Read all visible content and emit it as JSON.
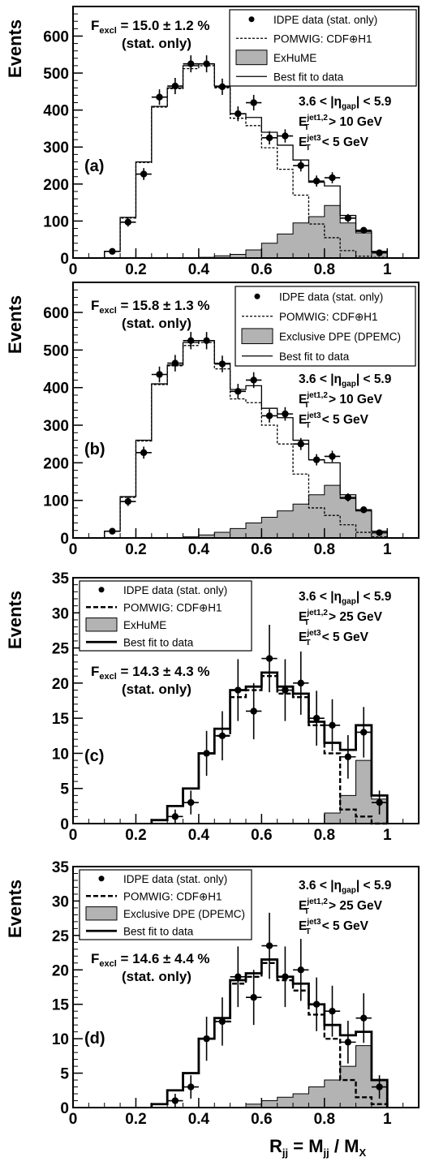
{
  "panels": [
    {
      "id": "a",
      "ylabel": "Events",
      "xlim": [
        0,
        1.1
      ],
      "ylim": [
        0,
        680
      ],
      "yticks": [
        0,
        100,
        200,
        300,
        400,
        500,
        600
      ],
      "xticks": [
        0,
        0.2,
        0.4,
        0.6,
        0.8,
        1
      ],
      "panel_label": "(a)",
      "fexcl_value": "15.0",
      "fexcl_unc": "1.2",
      "fexcl_stat": "(stat. only)",
      "cuts": {
        "eta_lo": "3.6",
        "eta_hi": "5.9",
        "et12": "> 10 GeV",
        "et3": "< 5 GeV"
      },
      "legend": {
        "data": "IDPE data (stat. only)",
        "pomwig": "POMWIG: CDF⊕H1",
        "excl": "ExHuME",
        "fit": "Best fit to data"
      },
      "chart_data": {
        "type": "histogram",
        "bin_edges": [
          0.1,
          0.15,
          0.2,
          0.25,
          0.3,
          0.35,
          0.4,
          0.45,
          0.5,
          0.55,
          0.6,
          0.65,
          0.7,
          0.75,
          0.8,
          0.85,
          0.9,
          0.95,
          1.0
        ],
        "data_x": [
          0.125,
          0.175,
          0.225,
          0.275,
          0.325,
          0.375,
          0.425,
          0.475,
          0.525,
          0.575,
          0.625,
          0.675,
          0.725,
          0.775,
          0.825,
          0.875,
          0.925,
          0.975
        ],
        "data_y": [
          18,
          97,
          227,
          435,
          465,
          525,
          525,
          463,
          390,
          420,
          325,
          330,
          250,
          208,
          217,
          108,
          75,
          14
        ],
        "data_err": [
          5,
          12,
          16,
          21,
          22,
          23,
          23,
          22,
          20,
          21,
          18,
          18,
          16,
          15,
          15,
          11,
          9,
          4
        ],
        "pomwig": [
          18,
          108,
          258,
          408,
          458,
          512,
          520,
          460,
          378,
          358,
          298,
          240,
          170,
          92,
          55,
          20,
          5,
          2
        ],
        "exclusive": [
          0,
          0,
          0,
          0,
          0,
          0,
          2,
          6,
          10,
          22,
          40,
          65,
          95,
          112,
          142,
          95,
          68,
          15
        ],
        "best_fit": [
          18,
          110,
          260,
          410,
          460,
          520,
          525,
          465,
          390,
          380,
          340,
          305,
          265,
          205,
          195,
          115,
          72,
          18
        ]
      }
    },
    {
      "id": "b",
      "ylabel": "Events",
      "xlim": [
        0,
        1.1
      ],
      "ylim": [
        0,
        680
      ],
      "yticks": [
        0,
        100,
        200,
        300,
        400,
        500,
        600
      ],
      "xticks": [
        0,
        0.2,
        0.4,
        0.6,
        0.8,
        1
      ],
      "panel_label": "(b)",
      "fexcl_value": "15.8",
      "fexcl_unc": "1.3",
      "fexcl_stat": "(stat. only)",
      "cuts": {
        "eta_lo": "3.6",
        "eta_hi": "5.9",
        "et12": "> 10 GeV",
        "et3": "< 5 GeV"
      },
      "legend": {
        "data": "IDPE data (stat. only)",
        "pomwig": "POMWIG: CDF⊕H1",
        "excl": "Exclusive DPE (DPEMC)",
        "fit": "Best fit to data"
      },
      "chart_data": {
        "type": "histogram",
        "bin_edges": [
          0.1,
          0.15,
          0.2,
          0.25,
          0.3,
          0.35,
          0.4,
          0.45,
          0.5,
          0.55,
          0.6,
          0.65,
          0.7,
          0.75,
          0.8,
          0.85,
          0.9,
          0.95,
          1.0
        ],
        "data_x": [
          0.125,
          0.175,
          0.225,
          0.275,
          0.325,
          0.375,
          0.425,
          0.475,
          0.525,
          0.575,
          0.625,
          0.675,
          0.725,
          0.775,
          0.825,
          0.875,
          0.925,
          0.975
        ],
        "data_y": [
          18,
          97,
          227,
          435,
          465,
          525,
          525,
          463,
          390,
          420,
          325,
          330,
          250,
          208,
          217,
          108,
          75,
          14
        ],
        "data_err": [
          5,
          12,
          16,
          21,
          22,
          23,
          23,
          22,
          20,
          21,
          18,
          18,
          16,
          15,
          15,
          11,
          9,
          4
        ],
        "pomwig": [
          18,
          108,
          258,
          408,
          458,
          512,
          520,
          450,
          370,
          360,
          300,
          250,
          170,
          80,
          60,
          35,
          15,
          3
        ],
        "exclusive": [
          0,
          0,
          0,
          0,
          0,
          3,
          8,
          15,
          25,
          40,
          55,
          72,
          90,
          115,
          140,
          105,
          75,
          18
        ],
        "best_fit": [
          18,
          110,
          260,
          410,
          460,
          520,
          525,
          465,
          395,
          405,
          345,
          320,
          260,
          208,
          200,
          115,
          72,
          18
        ]
      }
    },
    {
      "id": "c",
      "ylabel": "Events",
      "xlim": [
        0,
        1.1
      ],
      "ylim": [
        0,
        35
      ],
      "yticks": [
        0,
        5,
        10,
        15,
        20,
        25,
        30,
        35
      ],
      "xticks": [
        0,
        0.2,
        0.4,
        0.6,
        0.8,
        1
      ],
      "panel_label": "(c)",
      "fexcl_value": "14.3",
      "fexcl_unc": "4.3",
      "fexcl_stat": "(stat. only)",
      "cuts": {
        "eta_lo": "3.6",
        "eta_hi": "5.9",
        "et12": "> 25 GeV",
        "et3": "< 5 GeV"
      },
      "legend": {
        "data": "IDPE data (stat. only)",
        "pomwig": "POMWIG: CDF⊕H1",
        "excl": "ExHuME",
        "fit": "Best fit to data"
      },
      "chart_data": {
        "type": "histogram",
        "bin_edges": [
          0.25,
          0.3,
          0.35,
          0.4,
          0.45,
          0.5,
          0.55,
          0.6,
          0.65,
          0.7,
          0.75,
          0.8,
          0.85,
          0.9,
          0.95,
          1.0
        ],
        "data_x": [
          0.325,
          0.375,
          0.425,
          0.475,
          0.525,
          0.575,
          0.625,
          0.675,
          0.725,
          0.775,
          0.825,
          0.875,
          0.925,
          0.975
        ],
        "data_y": [
          1,
          3,
          10,
          12.5,
          19,
          16,
          23.5,
          19,
          20,
          15,
          14,
          9.5,
          13,
          3
        ],
        "data_err": [
          1,
          1.7,
          3.2,
          3.5,
          4.4,
          4,
          4.8,
          4.4,
          4.5,
          3.9,
          3.7,
          3.1,
          3.6,
          1.7
        ],
        "pomwig": [
          0.5,
          2.5,
          5,
          10,
          12.5,
          18,
          19,
          21,
          18.5,
          18,
          14,
          10,
          2,
          1,
          0
        ],
        "exclusive": [
          0,
          0,
          0,
          0,
          0,
          0,
          0,
          0,
          0,
          0,
          0,
          1.5,
          4,
          9,
          3.5
        ],
        "best_fit": [
          0.5,
          2.5,
          5,
          10,
          13.5,
          19,
          19.5,
          21.5,
          19.5,
          18.5,
          14.5,
          11.5,
          10.5,
          14,
          4
        ]
      }
    },
    {
      "id": "d",
      "ylabel": "Events",
      "xlim": [
        0,
        1.1
      ],
      "ylim": [
        0,
        35
      ],
      "yticks": [
        0,
        5,
        10,
        15,
        20,
        25,
        30,
        35
      ],
      "xticks": [
        0,
        0.2,
        0.4,
        0.6,
        0.8,
        1
      ],
      "panel_label": "(d)",
      "fexcl_value": "14.6",
      "fexcl_unc": "4.4",
      "fexcl_stat": "(stat. only)",
      "cuts": {
        "eta_lo": "3.6",
        "eta_hi": "5.9",
        "et12": "> 25 GeV",
        "et3": "< 5 GeV"
      },
      "legend": {
        "data": "IDPE data (stat. only)",
        "pomwig": "POMWIG: CDF⊕H1",
        "excl": "Exclusive DPE (DPEMC)",
        "fit": "Best fit to data"
      },
      "xlabel": "R_jj = M_jj / M_X",
      "chart_data": {
        "type": "histogram",
        "bin_edges": [
          0.25,
          0.3,
          0.35,
          0.4,
          0.45,
          0.5,
          0.55,
          0.6,
          0.65,
          0.7,
          0.75,
          0.8,
          0.85,
          0.9,
          0.95,
          1.0
        ],
        "data_x": [
          0.325,
          0.375,
          0.425,
          0.475,
          0.525,
          0.575,
          0.625,
          0.675,
          0.725,
          0.775,
          0.825,
          0.875,
          0.925,
          0.975
        ],
        "data_y": [
          1,
          3,
          10,
          12.5,
          19,
          16,
          23.5,
          19,
          20,
          15,
          14,
          9.5,
          13,
          3
        ],
        "data_err": [
          1,
          1.7,
          3.2,
          3.5,
          4.4,
          4,
          4.8,
          4.4,
          4.5,
          3.9,
          3.7,
          3.1,
          3.6,
          1.7
        ],
        "pomwig": [
          0.5,
          2.5,
          5,
          10,
          12.5,
          18,
          19,
          21,
          18.5,
          17,
          13.5,
          10,
          4,
          1.5,
          0.5
        ],
        "exclusive": [
          0,
          0,
          0,
          0,
          0,
          0,
          0.5,
          1,
          1.5,
          2,
          3,
          4,
          6,
          9,
          4
        ],
        "best_fit": [
          0.5,
          2.5,
          5,
          10,
          13,
          18.5,
          19.5,
          21.5,
          19,
          18,
          15,
          12,
          10.5,
          11,
          4
        ]
      }
    }
  ],
  "colors": {
    "fill": "#b3b3b3",
    "line": "#000000"
  }
}
